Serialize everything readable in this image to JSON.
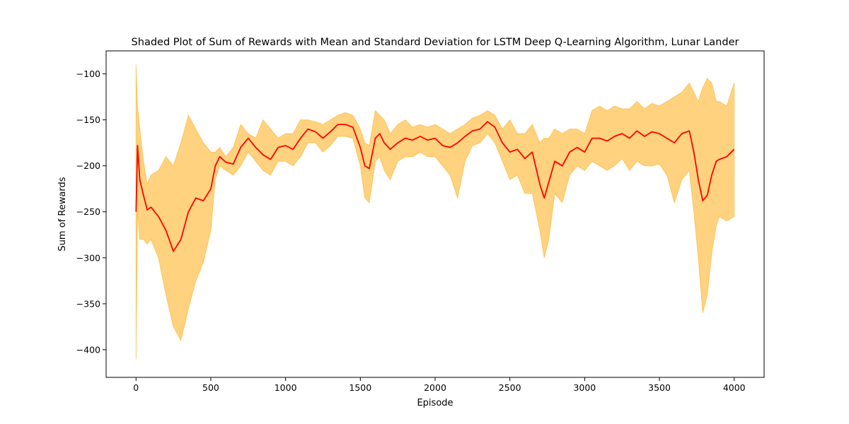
{
  "chart_data": {
    "type": "line",
    "title": "Shaded Plot of Sum of Rewards with Mean and Standard Deviation for LSTM Deep Q-Learning Algorithm, Lunar Lander",
    "xlabel": "Episode",
    "ylabel": "Sum of Rewards",
    "xlim": [
      -200,
      4200
    ],
    "ylim": [
      -430,
      -75
    ],
    "grid": false,
    "xticks": [
      0,
      500,
      1000,
      1500,
      2000,
      2500,
      3000,
      3500,
      4000
    ],
    "xtick_labels": [
      "0",
      "500",
      "1000",
      "1500",
      "2000",
      "2500",
      "3000",
      "3500",
      "4000"
    ],
    "yticks": [
      -400,
      -350,
      -300,
      -250,
      -200,
      -150,
      -100
    ],
    "ytick_labels": [
      "−400",
      "−350",
      "−300",
      "−250",
      "−200",
      "−150",
      "−100"
    ],
    "colors": {
      "mean": "#ff0000",
      "band": "#ffa500"
    },
    "x": [
      0,
      10,
      25,
      50,
      75,
      100,
      150,
      200,
      250,
      300,
      350,
      400,
      450,
      500,
      530,
      560,
      600,
      650,
      700,
      750,
      800,
      850,
      900,
      950,
      1000,
      1050,
      1100,
      1150,
      1200,
      1250,
      1300,
      1350,
      1400,
      1450,
      1500,
      1530,
      1560,
      1600,
      1630,
      1660,
      1700,
      1750,
      1800,
      1850,
      1900,
      1950,
      2000,
      2050,
      2100,
      2150,
      2200,
      2250,
      2300,
      2350,
      2400,
      2450,
      2500,
      2550,
      2600,
      2650,
      2700,
      2730,
      2760,
      2800,
      2850,
      2900,
      2950,
      3000,
      3050,
      3100,
      3150,
      3200,
      3250,
      3300,
      3350,
      3400,
      3450,
      3500,
      3550,
      3600,
      3650,
      3700,
      3730,
      3760,
      3790,
      3820,
      3850,
      3880,
      3900,
      3950,
      4000
    ],
    "series": [
      {
        "role": "mean",
        "values": [
          -250,
          -178,
          -215,
          -232,
          -248,
          -245,
          -255,
          -270,
          -293,
          -280,
          -250,
          -235,
          -238,
          -225,
          -200,
          -190,
          -196,
          -198,
          -180,
          -170,
          -180,
          -188,
          -193,
          -180,
          -178,
          -182,
          -170,
          -160,
          -163,
          -170,
          -163,
          -155,
          -155,
          -158,
          -180,
          -200,
          -203,
          -170,
          -165,
          -175,
          -182,
          -175,
          -170,
          -172,
          -168,
          -172,
          -170,
          -178,
          -180,
          -175,
          -168,
          -162,
          -160,
          -152,
          -158,
          -175,
          -185,
          -182,
          -192,
          -185,
          -220,
          -235,
          -218,
          -195,
          -200,
          -185,
          -180,
          -185,
          -170,
          -170,
          -173,
          -168,
          -165,
          -170,
          -162,
          -168,
          -163,
          -165,
          -170,
          -175,
          -165,
          -162,
          -185,
          -215,
          -238,
          -232,
          -210,
          -195,
          -193,
          -190,
          -182
        ]
      },
      {
        "role": "upper",
        "values": [
          -90,
          -135,
          -160,
          -195,
          -220,
          -210,
          -205,
          -190,
          -200,
          -175,
          -145,
          -160,
          -175,
          -185,
          -185,
          -180,
          -190,
          -180,
          -155,
          -165,
          -170,
          -150,
          -160,
          -170,
          -165,
          -165,
          -150,
          -150,
          -152,
          -155,
          -150,
          -145,
          -142,
          -145,
          -160,
          -175,
          -178,
          -140,
          -145,
          -150,
          -165,
          -155,
          -150,
          -158,
          -155,
          -158,
          -155,
          -160,
          -165,
          -160,
          -155,
          -148,
          -145,
          -140,
          -145,
          -160,
          -150,
          -165,
          -165,
          -155,
          -175,
          -170,
          -170,
          -160,
          -165,
          -160,
          -160,
          -165,
          -140,
          -135,
          -140,
          -135,
          -138,
          -138,
          -130,
          -138,
          -132,
          -135,
          -130,
          -125,
          -120,
          -110,
          -120,
          -130,
          -115,
          -105,
          -110,
          -130,
          -130,
          -135,
          -110
        ]
      },
      {
        "role": "lower",
        "values": [
          -410,
          -250,
          -280,
          -280,
          -285,
          -280,
          -300,
          -340,
          -375,
          -390,
          -355,
          -325,
          -305,
          -270,
          -215,
          -200,
          -205,
          -210,
          -200,
          -185,
          -195,
          -205,
          -210,
          -195,
          -195,
          -200,
          -190,
          -175,
          -175,
          -185,
          -178,
          -168,
          -168,
          -170,
          -200,
          -235,
          -240,
          -195,
          -190,
          -205,
          -215,
          -195,
          -190,
          -190,
          -185,
          -190,
          -190,
          -200,
          -210,
          -235,
          -195,
          -178,
          -175,
          -165,
          -175,
          -195,
          -215,
          -210,
          -230,
          -230,
          -270,
          -300,
          -280,
          -230,
          -240,
          -210,
          -200,
          -205,
          -195,
          -200,
          -205,
          -200,
          -192,
          -205,
          -195,
          -200,
          -200,
          -198,
          -210,
          -240,
          -215,
          -205,
          -250,
          -300,
          -360,
          -340,
          -295,
          -265,
          -255,
          -260,
          -255
        ]
      }
    ]
  }
}
